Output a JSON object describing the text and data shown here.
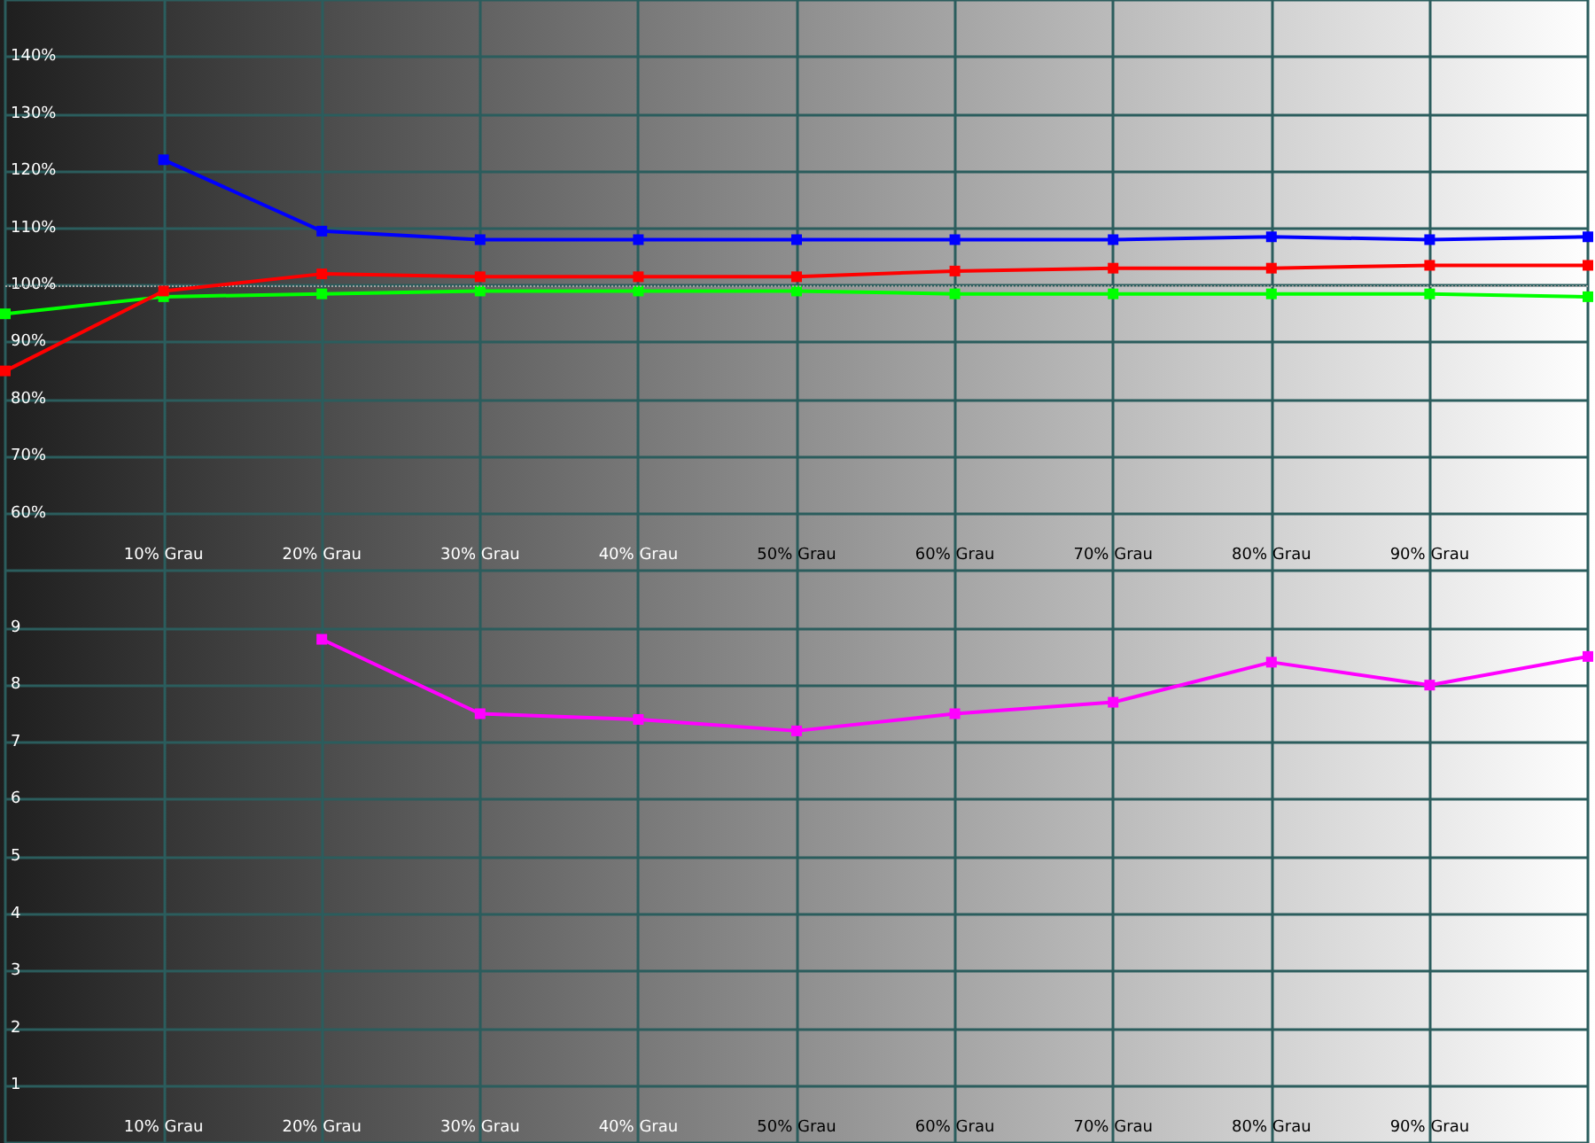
{
  "chart_data": [
    {
      "type": "line",
      "x": [
        0,
        10,
        20,
        30,
        40,
        50,
        60,
        70,
        80,
        90,
        100
      ],
      "series": [
        {
          "color": "#0000ff",
          "values": [
            null,
            122,
            109.5,
            108,
            108,
            108,
            108,
            108,
            108.5,
            108,
            108.5
          ]
        },
        {
          "color": "#ff0000",
          "values": [
            85,
            99,
            102,
            101.5,
            101.5,
            101.5,
            102.5,
            103,
            103,
            103.5,
            103.5
          ]
        },
        {
          "color": "#00ff00",
          "values": [
            95,
            98,
            98.5,
            99,
            99,
            99,
            98.5,
            98.5,
            98.5,
            98.5,
            98
          ]
        }
      ],
      "xlim": [
        0,
        100
      ],
      "xticks": [
        {
          "value": 10,
          "label": "10% Grau"
        },
        {
          "value": 20,
          "label": "20% Grau"
        },
        {
          "value": 30,
          "label": "30% Grau"
        },
        {
          "value": 40,
          "label": "40% Grau"
        },
        {
          "value": 50,
          "label": "50% Grau"
        },
        {
          "value": 60,
          "label": "60% Grau"
        },
        {
          "value": 70,
          "label": "70% Grau"
        },
        {
          "value": 80,
          "label": "80% Grau"
        },
        {
          "value": 90,
          "label": "90% Grau"
        }
      ],
      "ylim": [
        50,
        150
      ],
      "yticks": [
        {
          "value": 60,
          "label": "60%"
        },
        {
          "value": 70,
          "label": "70%"
        },
        {
          "value": 80,
          "label": "80%"
        },
        {
          "value": 90,
          "label": "90%"
        },
        {
          "value": 100,
          "label": "100%"
        },
        {
          "value": 110,
          "label": "110%"
        },
        {
          "value": 120,
          "label": "120%"
        },
        {
          "value": 130,
          "label": "130%"
        },
        {
          "value": 140,
          "label": "140%"
        }
      ],
      "ref_lines": [
        {
          "axis": "y",
          "value": 100,
          "color": "#a0a0a0",
          "line_style": "dotted"
        }
      ],
      "grid": true,
      "marker": "square",
      "line_style": "solid"
    },
    {
      "type": "line",
      "series": [
        {
          "color": "#ff00ff",
          "x": [
            20,
            30,
            40,
            50,
            60,
            70,
            80,
            90,
            100
          ],
          "values": [
            8.8,
            7.5,
            7.4,
            7.2,
            7.5,
            7.7,
            8.4,
            8.0,
            8.5
          ]
        }
      ],
      "xlim": [
        0,
        100
      ],
      "xticks": [
        {
          "value": 10,
          "label": "10% Grau"
        },
        {
          "value": 20,
          "label": "20% Grau"
        },
        {
          "value": 30,
          "label": "30% Grau"
        },
        {
          "value": 40,
          "label": "40% Grau"
        },
        {
          "value": 50,
          "label": "50% Grau"
        },
        {
          "value": 60,
          "label": "60% Grau"
        },
        {
          "value": 70,
          "label": "70% Grau"
        },
        {
          "value": 80,
          "label": "80% Grau"
        },
        {
          "value": 90,
          "label": "90% Grau"
        }
      ],
      "ylim": [
        0,
        10
      ],
      "yticks": [
        1,
        2,
        3,
        4,
        5,
        6,
        7,
        8,
        9
      ],
      "grid": true,
      "marker": "square",
      "line_style": "solid"
    }
  ]
}
